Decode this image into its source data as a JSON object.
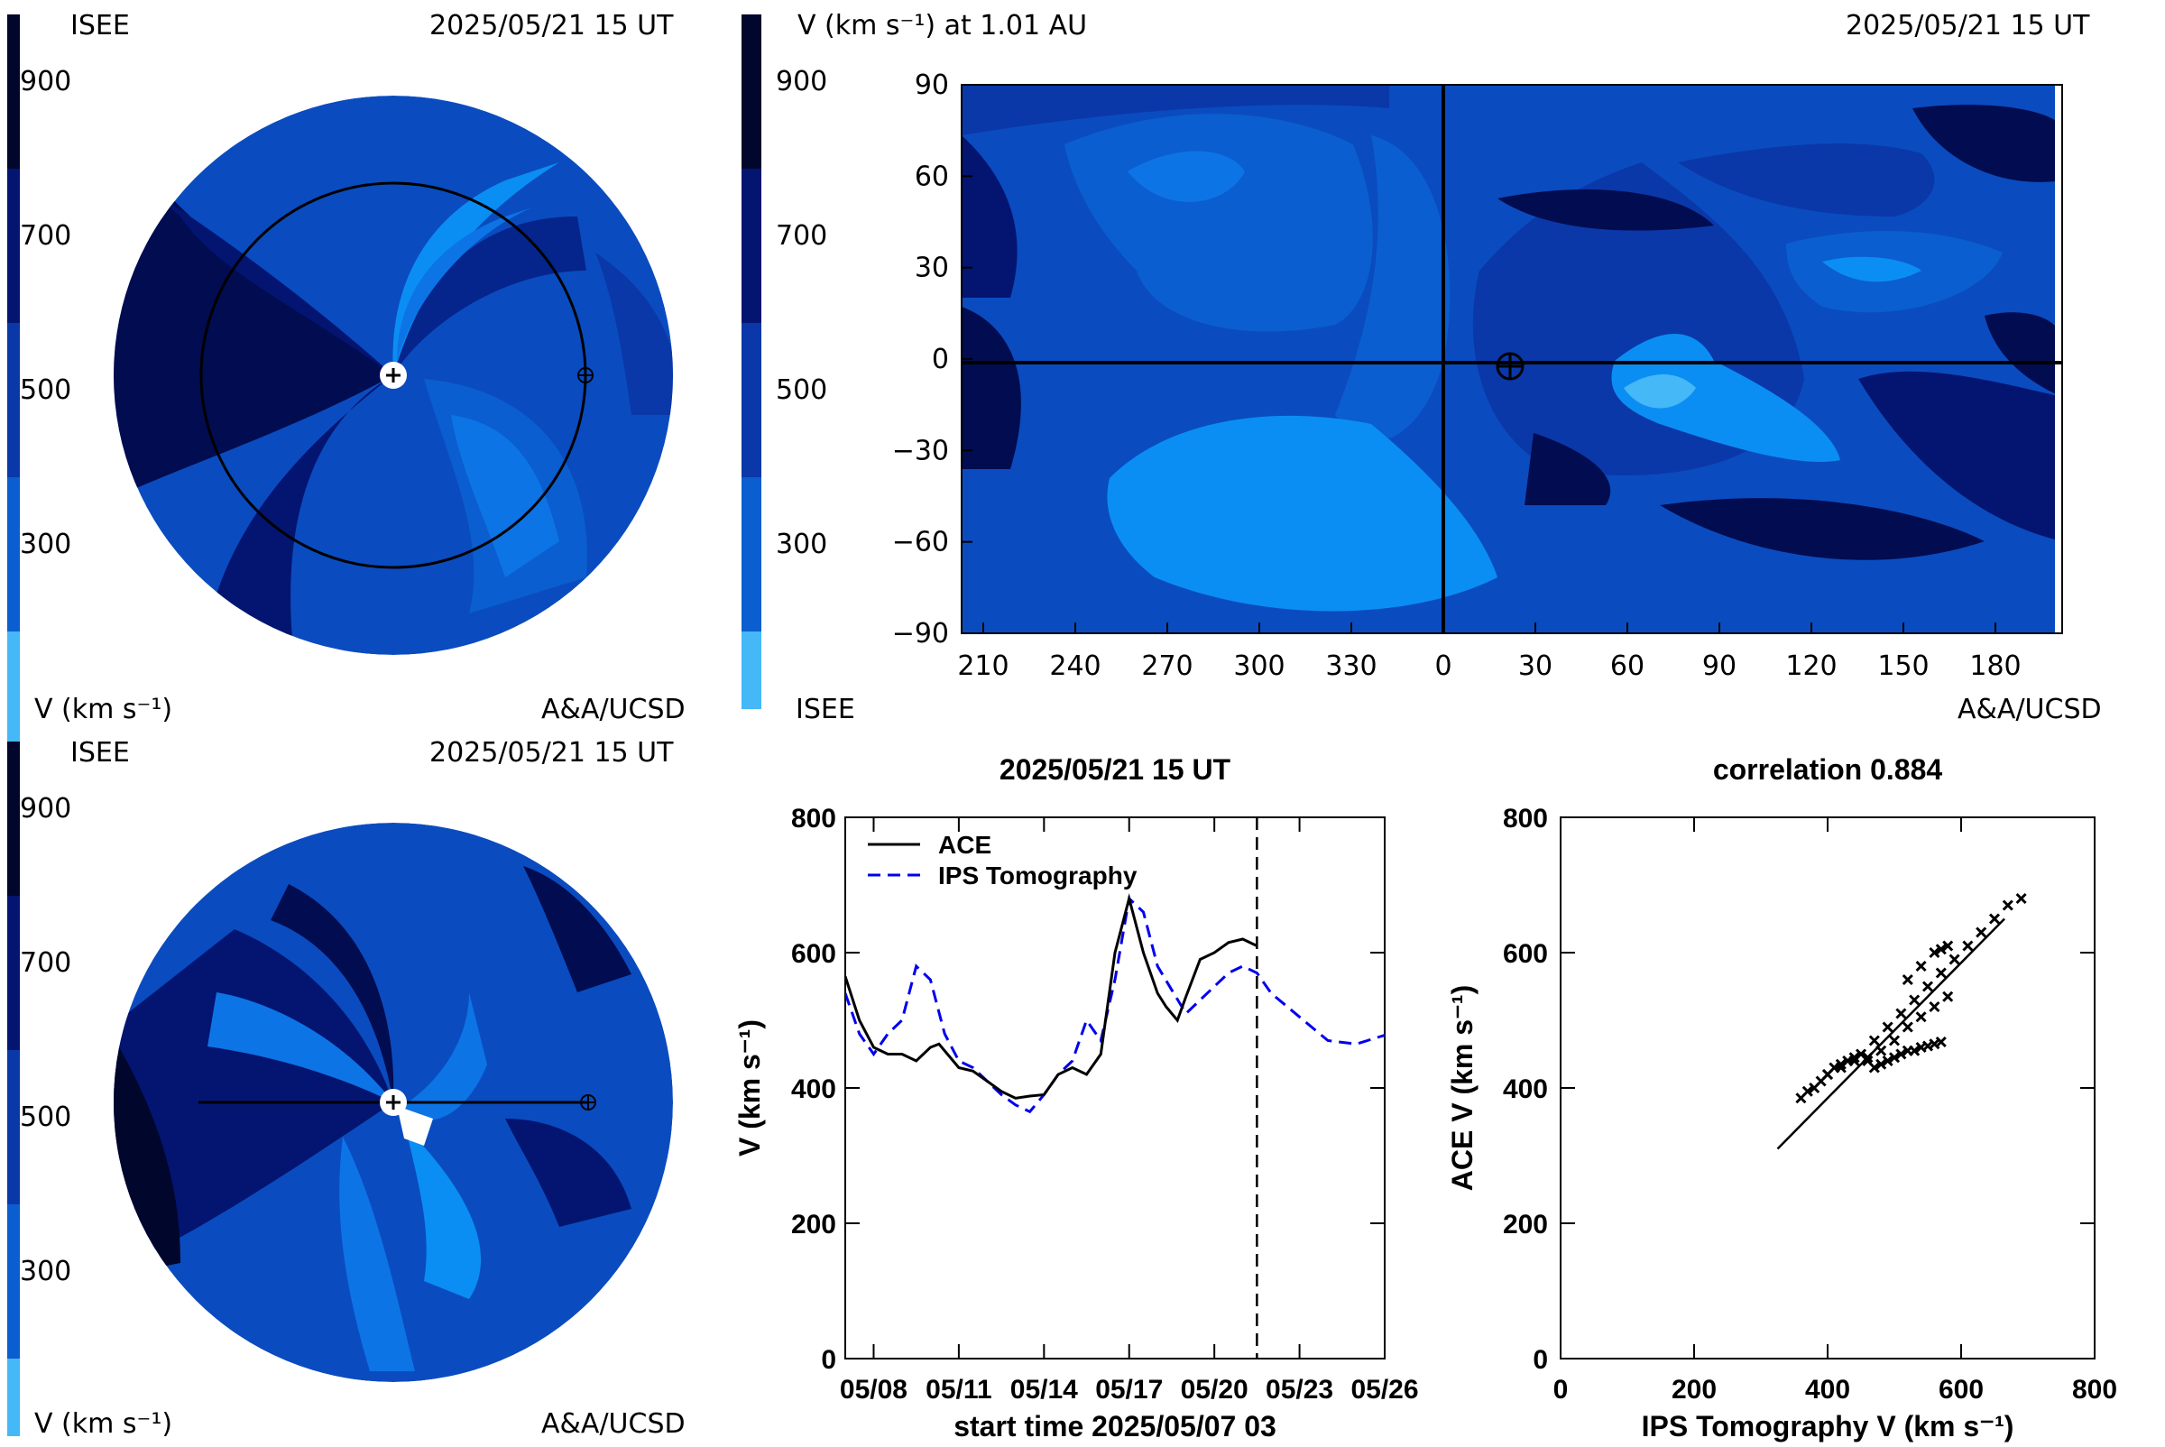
{
  "colors": {
    "bins": [
      "#a7d9f5",
      "#45b8f8",
      "#0b8ef3",
      "#0d74e6",
      "#0b5ecf",
      "#0a4cbf",
      "#0a38a8",
      "#05258c",
      "#031571",
      "#020c50",
      "#01062c"
    ],
    "black": "#000000",
    "ips_line": "#0000ee"
  },
  "top_left": {
    "label_org": "ISEE",
    "timestamp": "2025/05/21  15 UT",
    "scale_ticks": [
      "900",
      "700",
      "500",
      "300"
    ],
    "scale_label": "V (km s⁻¹)",
    "credit": "A&A/UCSD"
  },
  "bottom_left": {
    "label_org": "ISEE",
    "timestamp": "2025/05/21  15 UT",
    "scale_ticks": [
      "900",
      "700",
      "500",
      "300"
    ],
    "scale_label": "V (km s⁻¹)",
    "credit": "A&A/UCSD"
  },
  "synoptic_map": {
    "title": "V (km s⁻¹) at 1.01 AU",
    "timestamp": "2025/05/21  15 UT",
    "scale_ticks": [
      "900",
      "700",
      "500",
      "300"
    ],
    "label_org": "ISEE",
    "credit": "A&A/UCSD",
    "y_ticks": [
      "90",
      "60",
      "30",
      "0",
      "−30",
      "−60",
      "−90"
    ],
    "x_ticks": [
      "210",
      "240",
      "270",
      "300",
      "330",
      "0",
      "30",
      "60",
      "90",
      "120",
      "150",
      "180"
    ]
  },
  "chart_data": [
    {
      "type": "line",
      "title": "2025/05/21 15 UT",
      "xlabel": "start time 2025/05/07 03",
      "ylabel": "V (km s⁻¹)",
      "ylim": [
        0,
        800
      ],
      "y_ticks": [
        "0",
        "200",
        "400",
        "600",
        "800"
      ],
      "x_ticks": [
        "05/08",
        "05/11",
        "05/14",
        "05/17",
        "05/20",
        "05/23",
        "05/26"
      ],
      "x_unit": "days since start",
      "xlim": [
        0,
        19
      ],
      "now_marker": 14.5,
      "legend": "top-left",
      "series": [
        {
          "name": "ACE",
          "x": [
            0,
            0.5,
            1,
            1.5,
            2,
            2.5,
            3,
            3.3,
            3.6,
            4,
            4.5,
            5,
            5.5,
            6,
            6.5,
            7,
            7.5,
            8,
            8.5,
            9,
            9.5,
            10,
            10.5,
            11,
            11.3,
            11.7,
            12,
            12.5,
            13,
            13.5,
            14,
            14.5
          ],
          "values": [
            565,
            500,
            460,
            450,
            450,
            440,
            460,
            465,
            450,
            430,
            425,
            410,
            395,
            385,
            388,
            390,
            420,
            430,
            420,
            450,
            600,
            680,
            600,
            540,
            520,
            500,
            535,
            590,
            600,
            615,
            620,
            610
          ]
        },
        {
          "name": "IPS Tomography",
          "x": [
            0,
            0.5,
            1,
            1.5,
            2,
            2.5,
            3,
            3.5,
            4,
            4.5,
            5,
            5.5,
            6,
            6.5,
            7,
            7.5,
            8,
            8.5,
            9,
            9.5,
            10,
            10.5,
            11,
            11.5,
            12,
            12.5,
            13,
            13.5,
            14,
            14.5,
            15,
            16,
            17,
            18,
            19
          ],
          "values": [
            540,
            480,
            450,
            480,
            500,
            580,
            560,
            480,
            440,
            430,
            410,
            390,
            375,
            365,
            390,
            420,
            440,
            500,
            470,
            560,
            680,
            660,
            580,
            545,
            510,
            530,
            550,
            570,
            580,
            570,
            540,
            505,
            470,
            465,
            478
          ]
        }
      ]
    },
    {
      "type": "scatter",
      "title": "correlation 0.884",
      "xlabel": "IPS Tomography V (km s⁻¹)",
      "ylabel": "ACE V (km s⁻¹)",
      "xlim": [
        0,
        800
      ],
      "ylim": [
        0,
        800
      ],
      "x_ticks": [
        "0",
        "200",
        "400",
        "600",
        "800"
      ],
      "y_ticks": [
        "0",
        "200",
        "400",
        "600",
        "800"
      ],
      "x": [
        360,
        370,
        380,
        390,
        400,
        410,
        420,
        430,
        440,
        450,
        460,
        470,
        480,
        490,
        500,
        510,
        520,
        530,
        540,
        550,
        560,
        570,
        400,
        420,
        440,
        460,
        480,
        500,
        520,
        540,
        560,
        580,
        470,
        490,
        510,
        530,
        550,
        570,
        590,
        610,
        630,
        650,
        670,
        690,
        520,
        540,
        560,
        570,
        580
      ],
      "values": [
        385,
        395,
        400,
        410,
        420,
        430,
        435,
        440,
        445,
        450,
        440,
        430,
        435,
        440,
        445,
        450,
        455,
        455,
        460,
        462,
        465,
        468,
        420,
        430,
        440,
        445,
        455,
        470,
        490,
        505,
        520,
        535,
        470,
        490,
        510,
        530,
        550,
        570,
        590,
        610,
        630,
        650,
        670,
        680,
        560,
        580,
        600,
        605,
        610
      ],
      "fit": {
        "x": [
          325,
          665
        ],
        "y": [
          310,
          650
        ]
      }
    }
  ]
}
